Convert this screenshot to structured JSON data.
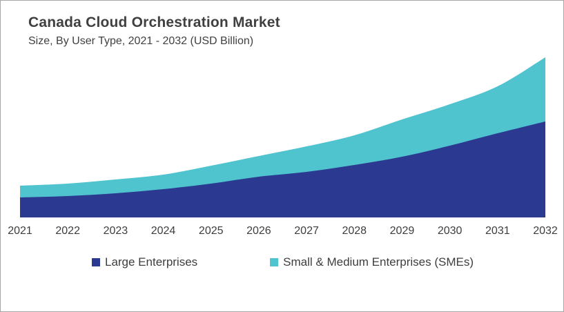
{
  "page": {
    "title": "Canada Cloud Orchestration Market",
    "subtitle": "Size, By User Type, 2021 - 2032 (USD Billion)"
  },
  "colors": {
    "large_enterprises": "#2b3a90",
    "smes": "#4fc3ce",
    "text": "#404040",
    "axis_text": "#3d3d3d",
    "border": "#a6a6a6",
    "background": "#ffffff"
  },
  "chart_data": {
    "type": "area",
    "stacked": true,
    "title": "Canada Cloud Orchestration Market",
    "subtitle": "Size, By User Type, 2021 - 2032 (USD Billion)",
    "unit": "USD Billion",
    "categories": [
      "2021",
      "2022",
      "2023",
      "2024",
      "2025",
      "2026",
      "2027",
      "2028",
      "2029",
      "2030",
      "2031",
      "2032"
    ],
    "series": [
      {
        "name": "Large Enterprises",
        "color": "#2b3a90",
        "values": [
          0.29,
          0.31,
          0.35,
          0.41,
          0.49,
          0.59,
          0.66,
          0.76,
          0.88,
          1.04,
          1.22,
          1.39
        ]
      },
      {
        "name": "Small & Medium Enterprises (SMEs)",
        "color": "#4fc3ce",
        "values": [
          0.17,
          0.18,
          0.2,
          0.21,
          0.26,
          0.3,
          0.37,
          0.43,
          0.54,
          0.6,
          0.68,
          0.93
        ]
      }
    ],
    "totals": [
      0.46,
      0.49,
      0.55,
      0.62,
      0.75,
      0.89,
      1.03,
      1.19,
      1.42,
      1.64,
      1.9,
      2.32
    ],
    "xlabel": "",
    "ylabel": "",
    "ylim": [
      0,
      2.5
    ],
    "grid": false,
    "y_axis_visible": false,
    "legend_position": "bottom",
    "values_estimated_from_pixels": true
  }
}
